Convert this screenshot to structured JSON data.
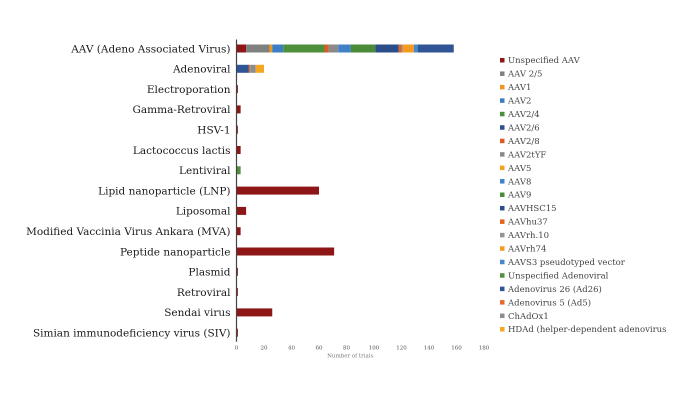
{
  "chart_data": {
    "type": "bar",
    "orientation": "horizontal",
    "stacked": true,
    "categories": [
      "AAV (Adeno Associated Virus)",
      "Adenoviral",
      "Electroporation",
      "Gamma-Retroviral",
      "HSV-1",
      "Lactococcus lactis",
      "Lentiviral",
      "Lipid nanoparticle (LNP)",
      "Liposomal",
      "Modified Vaccinia Virus Ankara (MVA)",
      "Peptide nanoparticle",
      "Plasmid",
      "Retroviral",
      "Sendai virus",
      "Simian immunodeficiency virus (SIV)"
    ],
    "series": [
      {
        "name": "Unspecified AAV",
        "color": "#8e1616",
        "values": [
          7,
          0,
          1,
          3,
          1,
          3,
          0,
          60,
          7,
          3,
          71,
          1,
          1,
          26,
          1
        ]
      },
      {
        "name": "AAV 2/5",
        "color": "#808080",
        "values": [
          17,
          0,
          0,
          0,
          0,
          0,
          0,
          0,
          0,
          0,
          0,
          0,
          0,
          0,
          0
        ]
      },
      {
        "name": "AAV1",
        "color": "#f0961e",
        "values": [
          2,
          0,
          0,
          0,
          0,
          0,
          0,
          0,
          0,
          0,
          0,
          0,
          0,
          0,
          0
        ]
      },
      {
        "name": "AAV2",
        "color": "#3d7dc4",
        "values": [
          8,
          0,
          0,
          0,
          0,
          0,
          0,
          0,
          0,
          0,
          0,
          0,
          0,
          0,
          0
        ]
      },
      {
        "name": "AAV2/4",
        "color": "#4e8f3a",
        "values": [
          30,
          0,
          0,
          0,
          0,
          0,
          0,
          0,
          0,
          0,
          0,
          0,
          0,
          0,
          0
        ]
      },
      {
        "name": "AAV2/6",
        "color": "#2d4f8c",
        "values": 0
      },
      {
        "name": "AAV2/8",
        "color": "#e05a26",
        "values": [
          3,
          0,
          0,
          0,
          0,
          0,
          0,
          0,
          0,
          0,
          0,
          0,
          0,
          0,
          0
        ]
      },
      {
        "name": "AAV2tYF",
        "color": "#8a8a8a",
        "values": [
          7,
          0,
          0,
          0,
          0,
          0,
          0,
          0,
          0,
          0,
          0,
          0,
          0,
          0,
          0
        ]
      },
      {
        "name": "AAV5",
        "color": "#f4a41c",
        "values": 0
      },
      {
        "name": "AAV8",
        "color": "#3f82c8",
        "values": [
          9,
          0,
          0,
          0,
          0,
          0,
          0,
          0,
          0,
          0,
          0,
          0,
          0,
          0,
          0
        ]
      },
      {
        "name": "AAV9",
        "color": "#4a8a38",
        "values": [
          18,
          0,
          0,
          0,
          0,
          0,
          0,
          0,
          0,
          0,
          0,
          0,
          0,
          0,
          0
        ]
      },
      {
        "name": "AAVHSC15",
        "color": "#2b4d8a",
        "values": [
          17,
          0,
          0,
          0,
          0,
          0,
          0,
          0,
          0,
          0,
          0,
          0,
          0,
          0,
          0
        ]
      },
      {
        "name": "AAVhu37",
        "color": "#e5621f",
        "values": [
          2,
          0,
          0,
          0,
          0,
          0,
          0,
          0,
          0,
          0,
          0,
          0,
          0,
          0,
          0
        ]
      },
      {
        "name": "AAVrh.10",
        "color": "#949494",
        "values": [
          1,
          0,
          0,
          0,
          0,
          0,
          0,
          0,
          0,
          0,
          0,
          0,
          0,
          0,
          0
        ]
      },
      {
        "name": "AAVrh74",
        "color": "#f39a1f",
        "values": [
          8,
          0,
          0,
          0,
          0,
          0,
          0,
          0,
          0,
          0,
          0,
          0,
          0,
          0,
          0
        ]
      },
      {
        "name": "AAVS3 pseudotyped vector",
        "color": "#4a88cc",
        "values": [
          3,
          0,
          0,
          0,
          0,
          0,
          0,
          0,
          0,
          0,
          0,
          0,
          0,
          0,
          0
        ]
      },
      {
        "name": "Unspecified Adenoviral",
        "color": "#52903c",
        "values": [
          0,
          0,
          0,
          0,
          0,
          0,
          3,
          0,
          0,
          0,
          0,
          0,
          0,
          0,
          0
        ]
      },
      {
        "name": "Adenovirus 26 (Ad26)",
        "color": "#2f5596",
        "values": [
          26,
          9,
          0,
          0,
          0,
          0,
          0,
          0,
          0,
          0,
          0,
          0,
          0,
          0,
          0
        ]
      },
      {
        "name": "Adenovirus 5 (Ad5)",
        "color": "#e46a2a",
        "values": [
          0,
          1,
          0,
          0,
          0,
          0,
          0,
          0,
          0,
          0,
          0,
          0,
          0,
          0,
          0
        ]
      },
      {
        "name": "ChAdOx1",
        "color": "#8c8c8c",
        "values": [
          0,
          4,
          0,
          0,
          0,
          0,
          0,
          0,
          0,
          0,
          0,
          0,
          0,
          0,
          0
        ]
      },
      {
        "name": "HDAd (helper-dependent adenovirus",
        "color": "#f5a623",
        "values": [
          0,
          6,
          0,
          0,
          0,
          0,
          0,
          0,
          0,
          0,
          0,
          0,
          0,
          0,
          0
        ]
      }
    ],
    "xlim": [
      0,
      180
    ],
    "xticks": [
      0,
      20,
      40,
      60,
      80,
      100,
      120,
      140,
      160,
      180
    ],
    "xlabel": "Number of trials",
    "grid": false,
    "legend_position": "right"
  }
}
